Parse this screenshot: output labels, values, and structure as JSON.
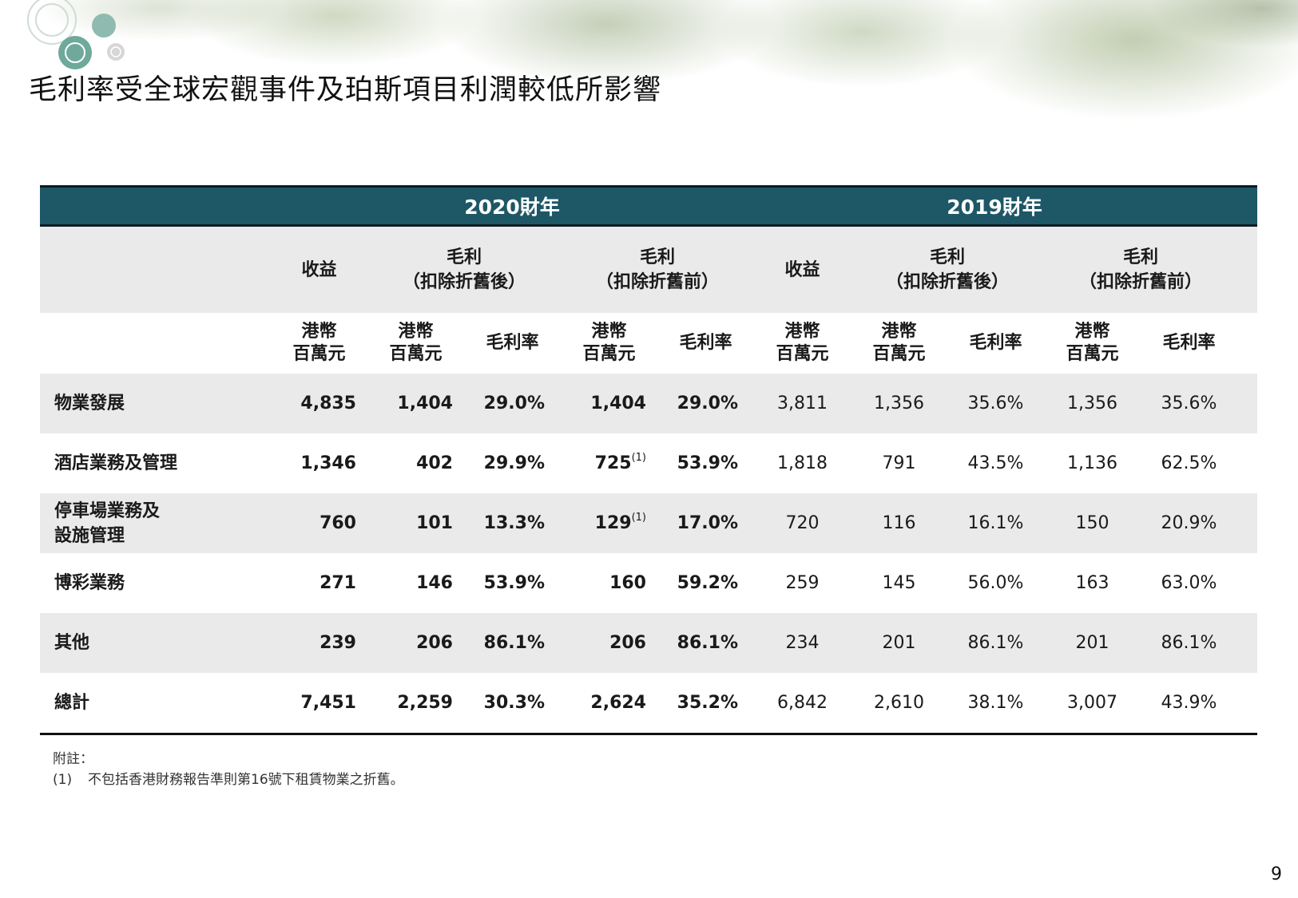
{
  "title": "毛利率受全球宏觀事件及珀斯項目利潤較低所影響",
  "years": [
    "2020財年",
    "2019財年"
  ],
  "group_headers": {
    "revenue": "收益",
    "gp_after": [
      "毛利",
      "（扣除折舊後）"
    ],
    "gp_before": [
      "毛利",
      "（扣除折舊前）"
    ]
  },
  "unit_headers": {
    "hkd": [
      "港幣",
      "百萬元"
    ],
    "margin": "毛利率"
  },
  "rows": [
    {
      "label": [
        "物業發展"
      ],
      "y2020": [
        "4,835",
        "1,404",
        "29.0%",
        "1,404",
        "29.0%"
      ],
      "y2019": [
        "3,811",
        "1,356",
        "35.6%",
        "1,356",
        "35.6%"
      ]
    },
    {
      "label": [
        "酒店業務及管理"
      ],
      "y2020": [
        "1,346",
        "402",
        "29.9%",
        "725",
        "53.9%"
      ],
      "y2019": [
        "1,818",
        "791",
        "43.5%",
        "1,136",
        "62.5%"
      ]
    },
    {
      "label": [
        "停車場業務及",
        "設施管理"
      ],
      "y2020": [
        "760",
        "101",
        "13.3%",
        "129",
        "17.0%"
      ],
      "y2019": [
        "720",
        "116",
        "16.1%",
        "150",
        "20.9%"
      ]
    },
    {
      "label": [
        "博彩業務"
      ],
      "y2020": [
        "271",
        "146",
        "53.9%",
        "160",
        "59.2%"
      ],
      "y2019": [
        "259",
        "145",
        "56.0%",
        "163",
        "63.0%"
      ]
    },
    {
      "label": [
        "其他"
      ],
      "y2020": [
        "239",
        "206",
        "86.1%",
        "206",
        "86.1%"
      ],
      "y2019": [
        "234",
        "201",
        "86.1%",
        "201",
        "86.1%"
      ]
    },
    {
      "label": [
        "總計"
      ],
      "y2020": [
        "7,451",
        "2,259",
        "30.3%",
        "2,624",
        "35.2%"
      ],
      "y2019": [
        "6,842",
        "2,610",
        "38.1%",
        "3,007",
        "43.9%"
      ]
    }
  ],
  "footnote_marker": "(1)",
  "notes": {
    "heading": "附註：",
    "items": [
      {
        "num": "(1)",
        "text": "不包括香港財務報告準則第16號下租賃物業之折舊。"
      }
    ]
  },
  "page_number": "9",
  "colors": {
    "header_band": "#1e5766",
    "shade": "#eaeaea",
    "rule": "#111111"
  }
}
